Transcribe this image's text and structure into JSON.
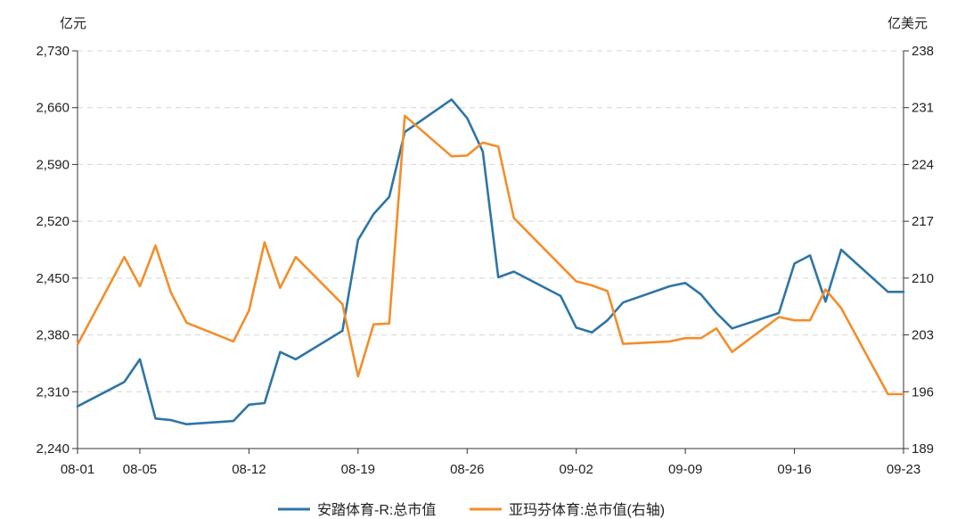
{
  "chart_data": {
    "type": "line",
    "left_unit": "亿元",
    "right_unit": "亿美元",
    "y_left": {
      "min": 2240,
      "max": 2730,
      "ticks": [
        "2,240",
        "2,310",
        "2,380",
        "2,450",
        "2,520",
        "2,590",
        "2,660",
        "2,730"
      ],
      "tick_values": [
        2240,
        2310,
        2380,
        2450,
        2520,
        2590,
        2660,
        2730
      ]
    },
    "y_right": {
      "min": 189,
      "max": 238,
      "ticks": [
        "189",
        "196",
        "203",
        "210",
        "217",
        "224",
        "231",
        "238"
      ],
      "tick_values": [
        189,
        196,
        203,
        210,
        217,
        224,
        231,
        238
      ]
    },
    "x_range": [
      1,
      54
    ],
    "x_ticks": [
      {
        "label": "08-01",
        "day": 1
      },
      {
        "label": "08-05",
        "day": 5
      },
      {
        "label": "08-12",
        "day": 12
      },
      {
        "label": "08-19",
        "day": 19
      },
      {
        "label": "08-26",
        "day": 26
      },
      {
        "label": "09-02",
        "day": 33
      },
      {
        "label": "09-09",
        "day": 40
      },
      {
        "label": "09-16",
        "day": 47
      },
      {
        "label": "09-23",
        "day": 54
      }
    ],
    "grid": true,
    "legend_position": "bottom",
    "series": [
      {
        "name": "安踏体育-R:总市值",
        "axis": "left",
        "color": "#2e75a6",
        "points": [
          [
            1,
            2292
          ],
          [
            4,
            2322
          ],
          [
            5,
            2350
          ],
          [
            6,
            2277
          ],
          [
            7,
            2275
          ],
          [
            8,
            2270
          ],
          [
            11,
            2274
          ],
          [
            12,
            2294
          ],
          [
            13,
            2296
          ],
          [
            14,
            2359
          ],
          [
            15,
            2350
          ],
          [
            18,
            2385
          ],
          [
            19,
            2497
          ],
          [
            20,
            2529
          ],
          [
            21,
            2550
          ],
          [
            22,
            2630
          ],
          [
            25,
            2670
          ],
          [
            26,
            2647
          ],
          [
            27,
            2606
          ],
          [
            28,
            2451
          ],
          [
            29,
            2458
          ],
          [
            32,
            2428
          ],
          [
            33,
            2389
          ],
          [
            34,
            2383
          ],
          [
            35,
            2398
          ],
          [
            36,
            2420
          ],
          [
            39,
            2440
          ],
          [
            40,
            2444
          ],
          [
            41,
            2430
          ],
          [
            42,
            2407
          ],
          [
            43,
            2388
          ],
          [
            46,
            2407
          ],
          [
            47,
            2468
          ],
          [
            48,
            2478
          ],
          [
            49,
            2421
          ],
          [
            50,
            2485
          ],
          [
            53,
            2433
          ],
          [
            54,
            2433
          ]
        ]
      },
      {
        "name": "亚玛芬体育:总市值(右轴)",
        "axis": "right",
        "color": "#f28e2b",
        "points": [
          [
            1,
            201.8
          ],
          [
            4,
            212.6
          ],
          [
            5,
            209.0
          ],
          [
            6,
            214.0
          ],
          [
            7,
            208.2
          ],
          [
            8,
            204.5
          ],
          [
            11,
            202.2
          ],
          [
            12,
            206.0
          ],
          [
            13,
            214.4
          ],
          [
            14,
            208.8
          ],
          [
            15,
            212.6
          ],
          [
            18,
            206.8
          ],
          [
            19,
            197.9
          ],
          [
            20,
            204.3
          ],
          [
            21,
            204.4
          ],
          [
            22,
            230.0
          ],
          [
            25,
            225.0
          ],
          [
            26,
            225.1
          ],
          [
            27,
            226.7
          ],
          [
            28,
            226.2
          ],
          [
            29,
            217.4
          ],
          [
            33,
            209.6
          ],
          [
            34,
            209.1
          ],
          [
            35,
            208.4
          ],
          [
            36,
            201.9
          ],
          [
            39,
            202.2
          ],
          [
            40,
            202.6
          ],
          [
            41,
            202.6
          ],
          [
            42,
            203.8
          ],
          [
            43,
            200.9
          ],
          [
            46,
            205.2
          ],
          [
            47,
            204.8
          ],
          [
            48,
            204.8
          ],
          [
            49,
            208.6
          ],
          [
            50,
            206.3
          ],
          [
            53,
            195.7
          ],
          [
            54,
            195.7
          ]
        ]
      }
    ]
  }
}
